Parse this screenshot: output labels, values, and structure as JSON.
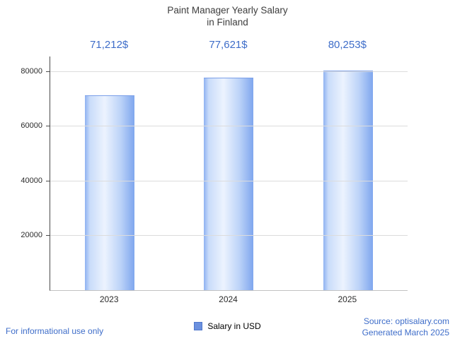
{
  "title": {
    "line1": "Paint Manager Yearly Salary",
    "line2": "in Finland"
  },
  "chart_data": {
    "type": "bar",
    "title": "Paint Manager Yearly Salary in Finland",
    "categories": [
      "2023",
      "2024",
      "2025"
    ],
    "values": [
      71212,
      77621,
      80253
    ],
    "value_labels": [
      "71,212$",
      "77,621$",
      "80,253$"
    ],
    "xlabel": "",
    "ylabel": "",
    "yticks": [
      20000,
      40000,
      60000,
      80000
    ],
    "ylim": [
      0,
      85700
    ],
    "grid": "horizontal",
    "legend": "Salary in USD",
    "legend_position": "bottom-center"
  },
  "footer": {
    "disclaimer": "For informational use only",
    "source": "Source: optisalary.com",
    "generated": "Generated March 2025"
  },
  "colors": {
    "accent_blue": "#3e6dc9",
    "title_gray": "#3d3d3d",
    "axis_dark": "#4a4a4a",
    "axis_light": "#c2c2c2",
    "grid_gray": "#dcdcdc",
    "bar_edge_left": "#8fb2f1",
    "bar_light": "#ecf3fe",
    "bar_edge_right": "#7fa6ee",
    "bar_cap": "#7b9fe8",
    "legend_blue": "#6b90de",
    "tick_text": "#2b2b2b"
  }
}
